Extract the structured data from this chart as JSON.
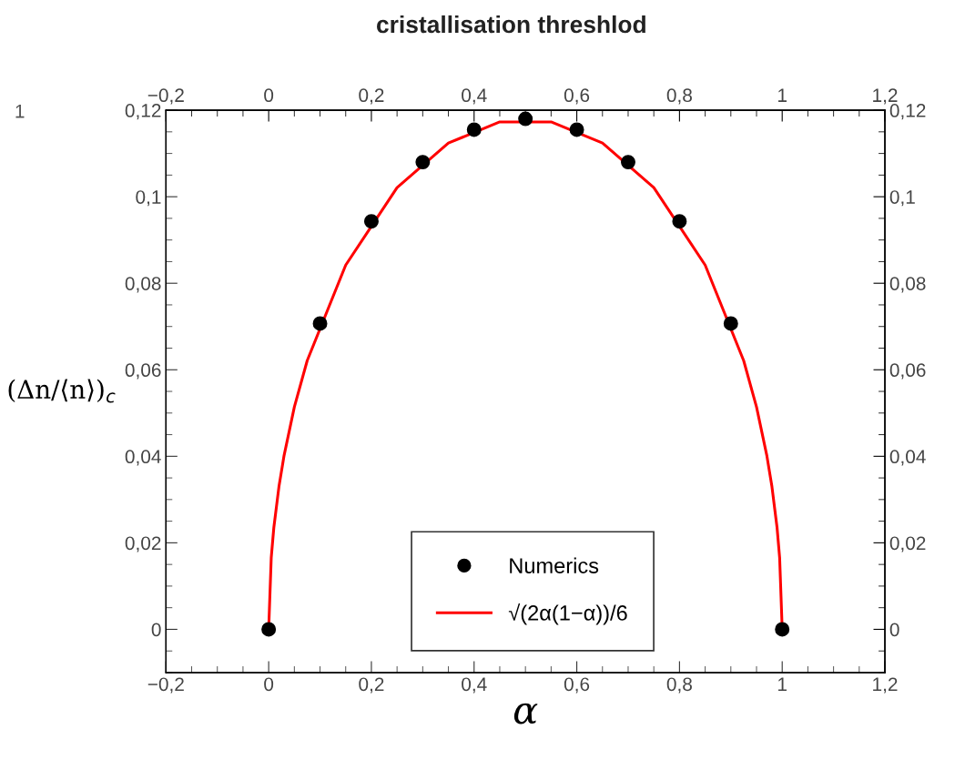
{
  "chart_data": {
    "type": "scatter",
    "title": "cristallisation threshlod",
    "xlabel": "α",
    "ylabel": "(Δn/⟨n⟩)$_{c}$",
    "annotations": [
      "1"
    ],
    "series": [
      {
        "name": "Numerics",
        "color": "#000000",
        "marker": "circle",
        "x": [
          0,
          0.1,
          0.2,
          0.3,
          0.4,
          0.5,
          0.6,
          0.7,
          0.8,
          0.9,
          1
        ],
        "values": [
          0,
          0.0707,
          0.0943,
          0.108,
          0.1155,
          0.118,
          0.1155,
          0.108,
          0.0943,
          0.0707,
          0
        ]
      },
      {
        "name": "√(2α(1−α))/6",
        "type": "line",
        "color": "#ff0000",
        "marker": "none",
        "line_style": "solid",
        "x": [
          0,
          0.005,
          0.01,
          0.02,
          0.03,
          0.05,
          0.075,
          0.15,
          0.25,
          0.35,
          0.45,
          0.55,
          0.65,
          0.75,
          0.85,
          0.925,
          0.95,
          0.97,
          0.98,
          0.99,
          0.995,
          1
        ],
        "values": [
          0,
          0.0166,
          0.0235,
          0.033,
          0.0402,
          0.0514,
          0.0621,
          0.0842,
          0.1021,
          0.1124,
          0.1173,
          0.1173,
          0.1124,
          0.1021,
          0.0842,
          0.0621,
          0.0514,
          0.0402,
          0.033,
          0.0235,
          0.0166,
          0
        ]
      }
    ],
    "xlim": [
      -0.2,
      1.2
    ],
    "xticks": [
      {
        "value": -0.2,
        "label": "−0,2"
      },
      0,
      {
        "value": 0.2,
        "label": "0,2"
      },
      {
        "value": 0.4,
        "label": "0,4"
      },
      {
        "value": 0.6,
        "label": "0,6"
      },
      {
        "value": 0.8,
        "label": "0,8"
      },
      1,
      {
        "value": 1.2,
        "label": "1,2"
      }
    ],
    "x2lim": [
      -0.2,
      1.2
    ],
    "x2ticks": [
      {
        "value": -0.2,
        "label": "−0,2"
      },
      0,
      {
        "value": 0.2,
        "label": "0,2"
      },
      {
        "value": 0.4,
        "label": "0,4"
      },
      {
        "value": 0.6,
        "label": "0,6"
      },
      {
        "value": 0.8,
        "label": "0,8"
      },
      1,
      {
        "value": 1.2,
        "label": "1,2"
      }
    ],
    "ylim": [
      -0.01,
      0.12
    ],
    "yticks": [
      0,
      {
        "value": 0.02,
        "label": "0,02"
      },
      {
        "value": 0.04,
        "label": "0,04"
      },
      {
        "value": 0.06,
        "label": "0,06"
      },
      {
        "value": 0.08,
        "label": "0,08"
      },
      {
        "value": 0.1,
        "label": "0,1"
      },
      {
        "value": 0.12,
        "label": "0,12"
      }
    ],
    "y2lim": [
      -0.01,
      0.12
    ],
    "y2ticks": [
      0,
      {
        "value": 0.02,
        "label": "0,02"
      },
      {
        "value": 0.04,
        "label": "0,04"
      },
      {
        "value": 0.06,
        "label": "0,06"
      },
      {
        "value": 0.08,
        "label": "0,08"
      },
      {
        "value": 0.1,
        "label": "0,1"
      },
      {
        "value": 0.12,
        "label": "0,12"
      }
    ],
    "grid": false,
    "legend": "bottom"
  }
}
